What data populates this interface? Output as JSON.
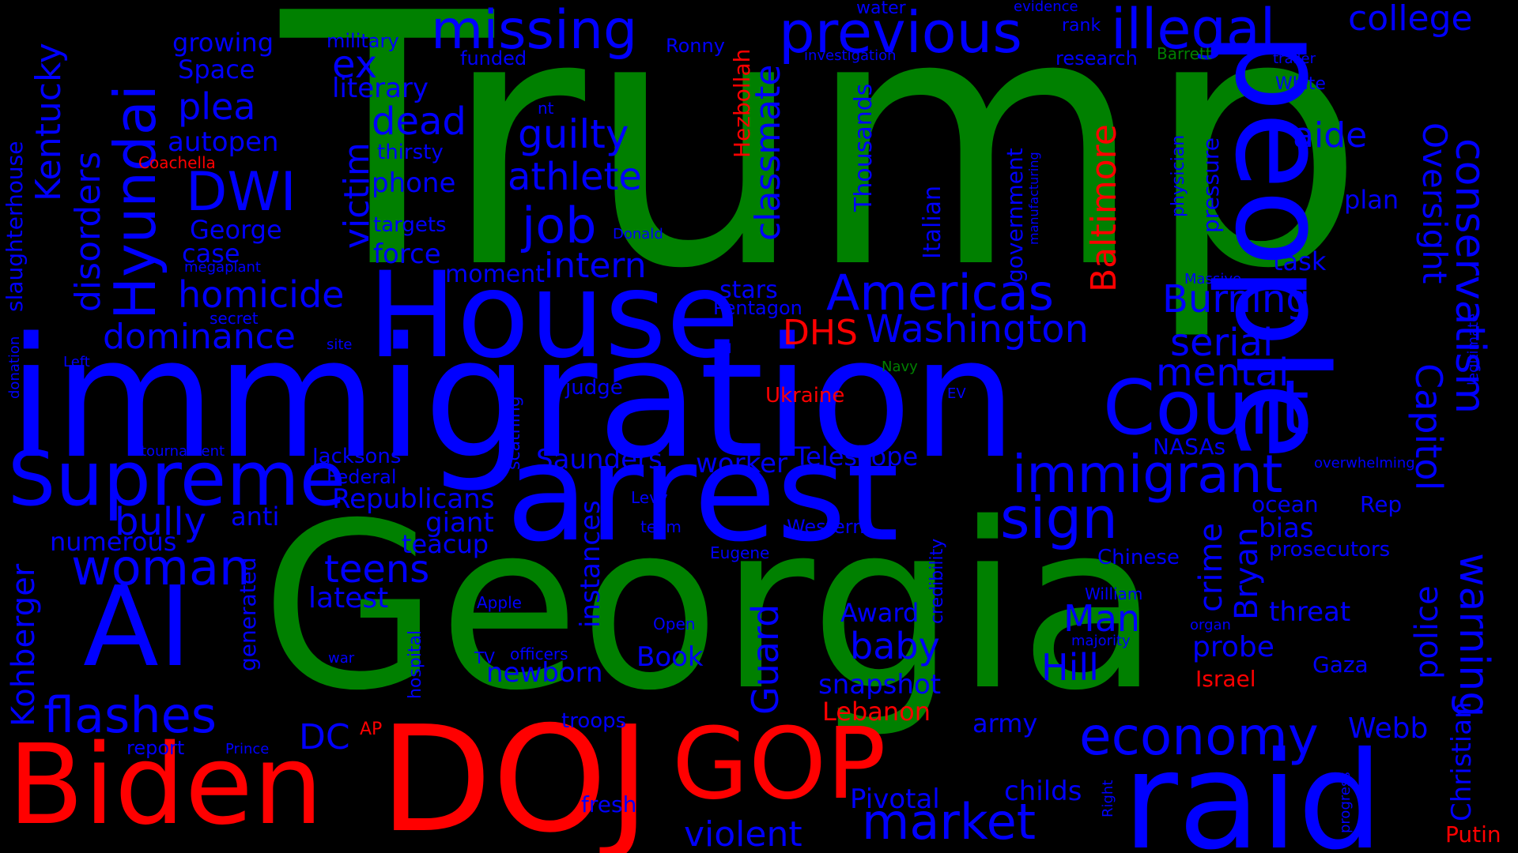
{
  "colors": {
    "green": "#008000",
    "blue": "#0000ff",
    "red": "#ff0000",
    "background": "#000000"
  },
  "words": {
    "trump": "Trump",
    "georgia": "Georgia",
    "immigration": "immigration",
    "house": "House",
    "arrest": "arrest",
    "people": "people",
    "raid": "raid",
    "biden": "Biden",
    "doj": "DOJ",
    "gop": "GOP",
    "supreme": "Supreme",
    "ai": "AI",
    "court": "Court",
    "americas": "Americas",
    "immigrant": "immigrant",
    "sign": "sign",
    "hyundai": "Hyundai",
    "missing": "missing",
    "previous": "previous",
    "illegal": "illegal",
    "college": "college",
    "woman": "woman",
    "flashes": "flashes",
    "economy": "economy",
    "market": "market",
    "violent": "violent",
    "conservatism": "conservatism",
    "warning": "warning",
    "oversight": "Oversight",
    "capitol": "Capitol",
    "washington": "Washington",
    "job": "job",
    "guilty": "guilty",
    "athlete": "athlete",
    "intern": "intern",
    "dwi": "DWI",
    "homicide": "homicide",
    "dominance": "dominance",
    "dead": "dead",
    "plea": "plea",
    "kentucky": "Kentucky",
    "disorders": "disorders",
    "classmate": "classmate",
    "baltimore": "Baltimore",
    "hezbollah": "Hezbollah",
    "dhs": "DHS",
    "burning": "Burning",
    "serial": "serial",
    "mental": "mental",
    "aide": "aide",
    "bully": "bully",
    "teens": "teens",
    "kohberger": "Kohberger",
    "guard": "Guard",
    "hill": "Hill",
    "man": "Man",
    "crime": "crime",
    "bryan": "Bryan",
    "police": "police",
    "baby": "baby",
    "dc": "DC",
    "victim": "victim",
    "ex": "ex",
    "growing": "growing",
    "space": "Space",
    "literary": "literary",
    "autopen": "autopen",
    "george": "George",
    "case": "case",
    "force": "force",
    "moment": "moment",
    "phone": "phone",
    "thirsty": "thirsty",
    "targets": "targets",
    "saunders": "Saunders",
    "worker": "worker",
    "telescope": "Telescope",
    "republicans": "Republicans",
    "giant": "giant",
    "teacup": "teacup",
    "numerous": "numerous",
    "anti": "anti",
    "latest": "latest",
    "instances": "instances",
    "newborn": "newborn",
    "book": "Book",
    "award": "Award",
    "snapshot": "snapshot",
    "lebanon": "Lebanon",
    "army": "army",
    "childs": "childs",
    "pivotal": "Pivotal",
    "fresh": "fresh",
    "troops": "troops",
    "webb": "Webb",
    "putin": "Putin",
    "christian": "Christian",
    "gaza": "Gaza",
    "israel": "Israel",
    "probe": "probe",
    "threat": "threat",
    "bias": "bias",
    "ocean": "ocean",
    "rep": "Rep",
    "prosecutors": "prosecutors",
    "chinese": "Chinese",
    "task": "task",
    "plan": "plan",
    "thousands": "Thousands",
    "government": "government",
    "italian": "Italian",
    "ukraine": "Ukraine",
    "stars": "stars",
    "pentagon": "Pentagon",
    "judge": "judge",
    "nasas": "NASAs",
    "federal": "Federal",
    "jacksons": "Jacksons",
    "tournament": "tournament",
    "western": "Western",
    "levy": "Levy",
    "team": "team",
    "eugene": "Eugene",
    "apple": "Apple",
    "open": "Open",
    "officers": "officers",
    "tv": "TV",
    "war": "war",
    "hospital": "hospital",
    "generated": "generated",
    "report": "report",
    "prince": "Prince",
    "ap": "AP",
    "credibility": "credibility",
    "william": "William",
    "organ": "organ",
    "majority": "majority",
    "massive": "Massive",
    "physician": "physician",
    "pressure": "pressure",
    "manufacturing": "manufacturing",
    "donald": "Donald",
    "nt": "nt",
    "scathing": "scathing",
    "site": "site",
    "secret": "secret",
    "megaplant": "megaplant",
    "left": "Left",
    "slaughterhouse": "slaughterhouse",
    "donation": "donation",
    "coachella": "Coachella",
    "military": "military",
    "funded": "funded",
    "ronny": "Ronny",
    "water": "water",
    "evidence": "evidence",
    "investigation": "investigation",
    "rank": "rank",
    "research": "research",
    "barrett": "Barrett",
    "trailer": "trailer",
    "white": "White",
    "navy": "Navy",
    "ev": "EV",
    "legitimate": "legitimate",
    "overwhelming": "overwhelming",
    "right": "Right",
    "progress": "progress"
  }
}
